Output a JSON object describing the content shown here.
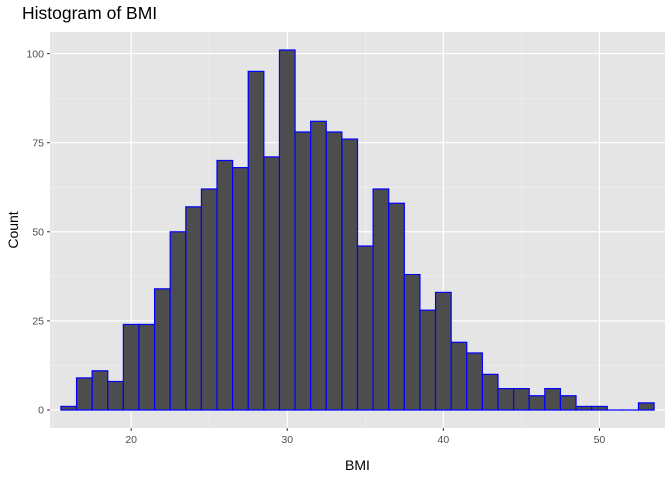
{
  "chart_data": {
    "type": "bar",
    "title": "Histogram of BMI",
    "xlabel": "BMI",
    "ylabel": "Count",
    "xlim": [
      14.8,
      54.2
    ],
    "ylim": [
      -5.05,
      106.05
    ],
    "x_ticks": [
      20,
      30,
      40,
      50
    ],
    "y_ticks": [
      0,
      25,
      50,
      75,
      100
    ],
    "grid": true,
    "bin_width": 1,
    "fill_color": "#4d4d4d",
    "outline_color": "#0000ff",
    "panel_color": "#e5e5e5",
    "bin_centers": [
      16,
      17,
      18,
      19,
      20,
      21,
      22,
      23,
      24,
      25,
      26,
      27,
      28,
      29,
      30,
      31,
      32,
      33,
      34,
      35,
      36,
      37,
      38,
      39,
      40,
      41,
      42,
      43,
      44,
      45,
      46,
      47,
      48,
      49,
      50,
      51,
      52,
      53
    ],
    "counts": [
      1,
      9,
      11,
      8,
      24,
      24,
      34,
      50,
      57,
      62,
      70,
      68,
      95,
      71,
      101,
      78,
      81,
      78,
      76,
      46,
      62,
      58,
      38,
      28,
      33,
      19,
      16,
      10,
      6,
      6,
      4,
      6,
      4,
      1,
      1,
      0,
      0,
      2
    ]
  }
}
